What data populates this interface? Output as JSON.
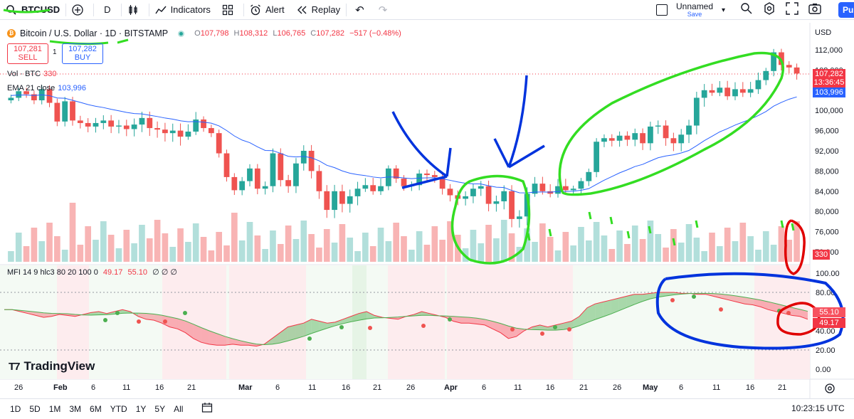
{
  "toolbar": {
    "symbol": "BTCUSD",
    "interval": "D",
    "indicators_label": "Indicators",
    "alert_label": "Alert",
    "replay_label": "Replay",
    "layout_name": "Unnamed",
    "layout_status": "Save",
    "publish_label": "Pub"
  },
  "legend": {
    "title": "Bitcoin / U.S. Dollar · 1D · BITSTAMP",
    "o_label": "O",
    "o": "107,798",
    "h_label": "H",
    "h": "108,312",
    "l_label": "L",
    "l": "106,765",
    "c_label": "C",
    "c": "107,282",
    "change": "−517 (−0.48%)"
  },
  "trade": {
    "sell_price": "107,281",
    "sell_label": "SELL",
    "qty": "1",
    "buy_price": "107,282",
    "buy_label": "BUY"
  },
  "volume": {
    "label": "Vol · BTC",
    "value": "330"
  },
  "ema": {
    "label": "EMA 21 close",
    "value": "103,996"
  },
  "mfi": {
    "label": "MFI 14 9 hlc3 80 20 100 0",
    "v1": "49.17",
    "v2": "55.10",
    "extra": "∅ ∅ ∅"
  },
  "price_axis": {
    "currency": "USD",
    "ticks": [
      "112,000",
      "108,000",
      "104,000",
      "100,000",
      "96,000",
      "92,000",
      "88,000",
      "84,000",
      "80,000",
      "76,000",
      "72,000"
    ],
    "last_price": "107,282",
    "countdown": "13:36:45",
    "ema_tag": "103,996",
    "vol_tag": "330"
  },
  "mfi_axis": {
    "ticks": [
      "100.00",
      "80.00",
      "60.00",
      "40.00",
      "20.00",
      "0.00"
    ],
    "tag1": "55.10",
    "tag2": "49.17"
  },
  "x_axis": {
    "labels": [
      "26",
      "Feb",
      "6",
      "11",
      "16",
      "21",
      "Mar",
      "6",
      "11",
      "16",
      "21",
      "26",
      "Apr",
      "6",
      "11",
      "16",
      "21",
      "26",
      "May",
      "6",
      "11",
      "16",
      "21"
    ]
  },
  "brand": "TradingView",
  "ranges": [
    "1D",
    "5D",
    "1M",
    "3M",
    "6M",
    "YTD",
    "1Y",
    "5Y",
    "All"
  ],
  "clock": "10:23:15 UTC",
  "colors": {
    "up": "#26a69a",
    "down": "#ef5350",
    "ema": "#2962ff",
    "annotation_green": "#33dd22",
    "annotation_blue": "#0033dd",
    "annotation_red": "#e00000"
  }
}
